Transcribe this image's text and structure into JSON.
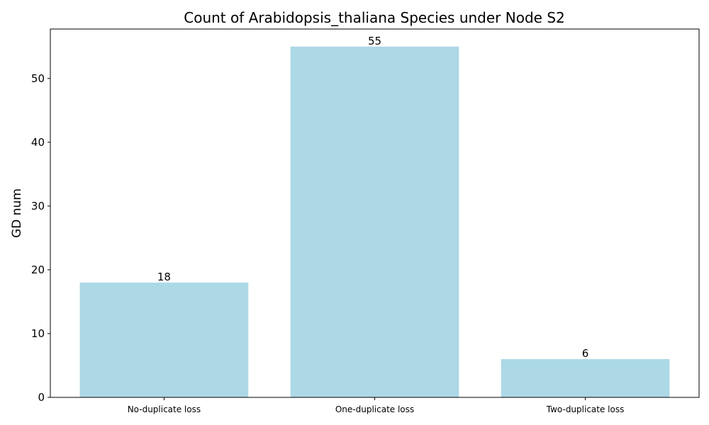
{
  "chart_data": {
    "type": "bar",
    "title": "Count of Arabidopsis_thaliana Species under Node S2",
    "xlabel": "",
    "ylabel": "GD num",
    "categories": [
      "No-duplicate loss",
      "One-duplicate loss",
      "Two-duplicate loss"
    ],
    "values": [
      18,
      55,
      6
    ],
    "value_labels": [
      "18",
      "55",
      "6"
    ],
    "yticks": [
      0,
      10,
      20,
      30,
      40,
      50
    ],
    "ytick_labels": [
      "0",
      "10",
      "20",
      "30",
      "40",
      "50"
    ],
    "ylim": [
      0,
      57.75
    ],
    "grid": false,
    "bar_color": "#add8e6"
  }
}
